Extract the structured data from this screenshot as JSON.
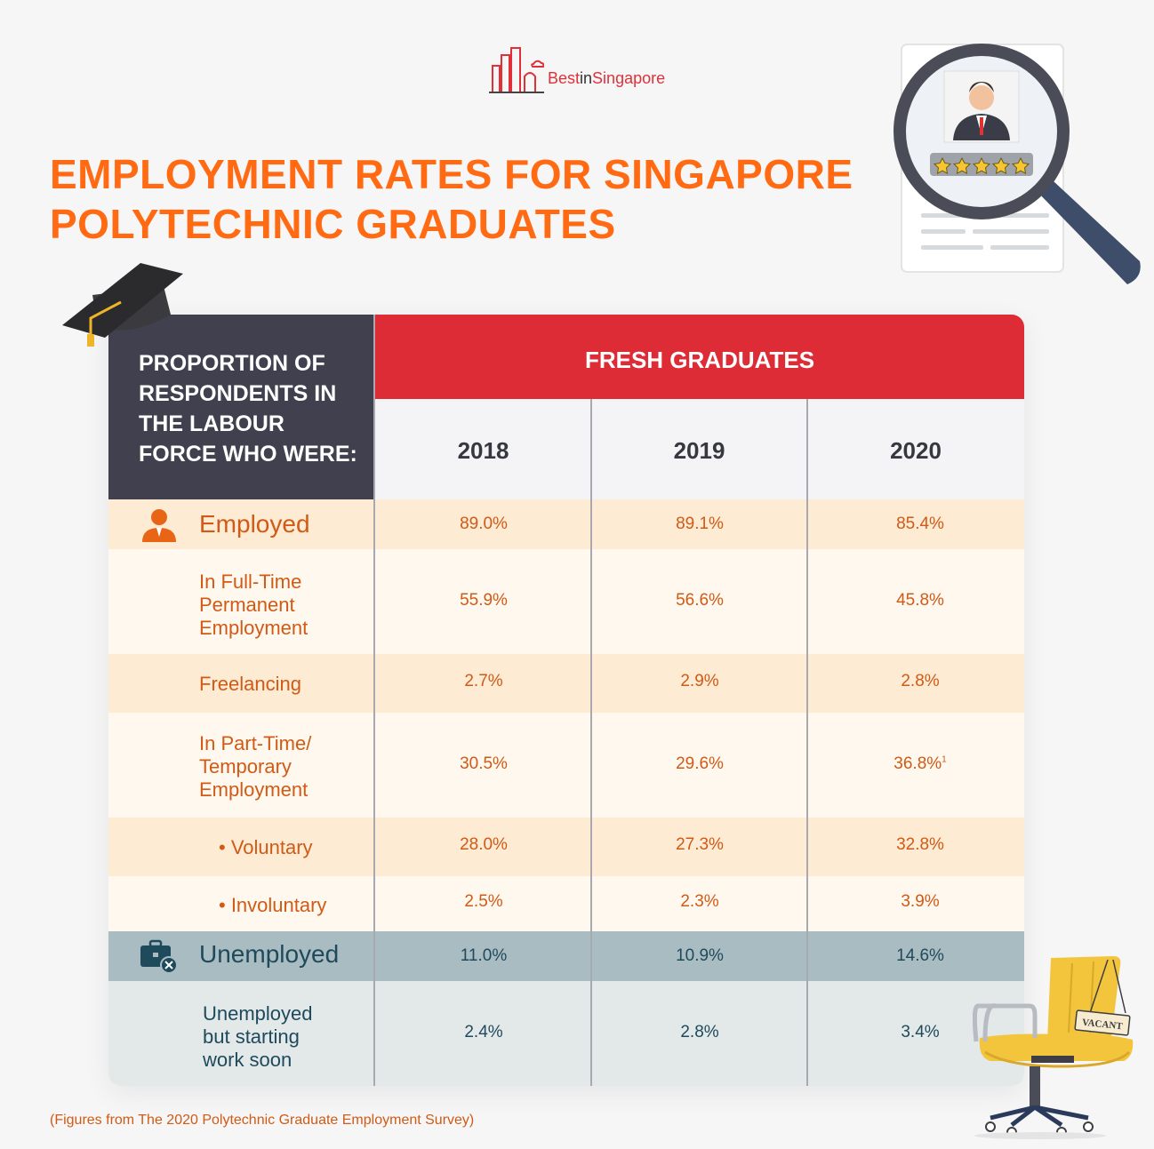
{
  "logo": {
    "brand_best": "Best",
    "brand_in": "in",
    "brand_singapore": "Singapore"
  },
  "title": {
    "line1": "EMPLOYMENT RATES FOR SINGAPORE",
    "line2": "POLYTECHNIC GRADUATES"
  },
  "table": {
    "row_header": "PROPORTION OF RESPONDENTS IN THE LABOUR FORCE WHO WERE:",
    "row_header_lines": [
      "PROPORTION OF",
      "RESPONDENTS IN",
      "THE LABOUR",
      "FORCE WHO WERE:"
    ],
    "group_header": "FRESH GRADUATES",
    "years": [
      "2018",
      "2019",
      "2020"
    ],
    "rows": [
      {
        "label": "Employed",
        "values": [
          "89.0%",
          "89.1%",
          "85.4%"
        ],
        "icon": "person-icon"
      },
      {
        "label": "In Full-Time Permanent Employment",
        "lines": [
          "In Full-Time",
          "Permanent",
          "Employment"
        ],
        "values": [
          "55.9%",
          "56.6%",
          "45.8%"
        ]
      },
      {
        "label": "Freelancing",
        "values": [
          "2.7%",
          "2.9%",
          "2.8%"
        ]
      },
      {
        "label": "In Part-Time/ Temporary Employment",
        "lines": [
          "In Part-Time/",
          "Temporary",
          "Employment"
        ],
        "values": [
          "30.5%",
          "29.6%",
          "36.8%"
        ],
        "note_mark": "1"
      },
      {
        "label": "• Voluntary",
        "values": [
          "28.0%",
          "27.3%",
          "32.8%"
        ]
      },
      {
        "label": "• Involuntary",
        "values": [
          "2.5%",
          "2.3%",
          "3.9%"
        ]
      },
      {
        "label": "Unemployed",
        "values": [
          "11.0%",
          "10.9%",
          "14.6%"
        ],
        "icon": "briefcase-x-icon"
      },
      {
        "label": "Unemployed but starting work soon",
        "lines": [
          "Unemployed",
          "but starting",
          "work soon"
        ],
        "values": [
          "2.4%",
          "2.8%",
          "3.4%"
        ]
      }
    ]
  },
  "chair_sign": "VACANT",
  "footnote": "(Figures from The 2020 Polytechnic Graduate Employment Survey)",
  "colors": {
    "title": "#ff6a13",
    "header_dark": "#40404f",
    "header_red": "#dd2c35",
    "employed_band": "#fdebd3",
    "employed_rows": "#fff8ee",
    "unemployed_band": "#a9bcc1",
    "unemployed_row": "#e3e8e9"
  }
}
